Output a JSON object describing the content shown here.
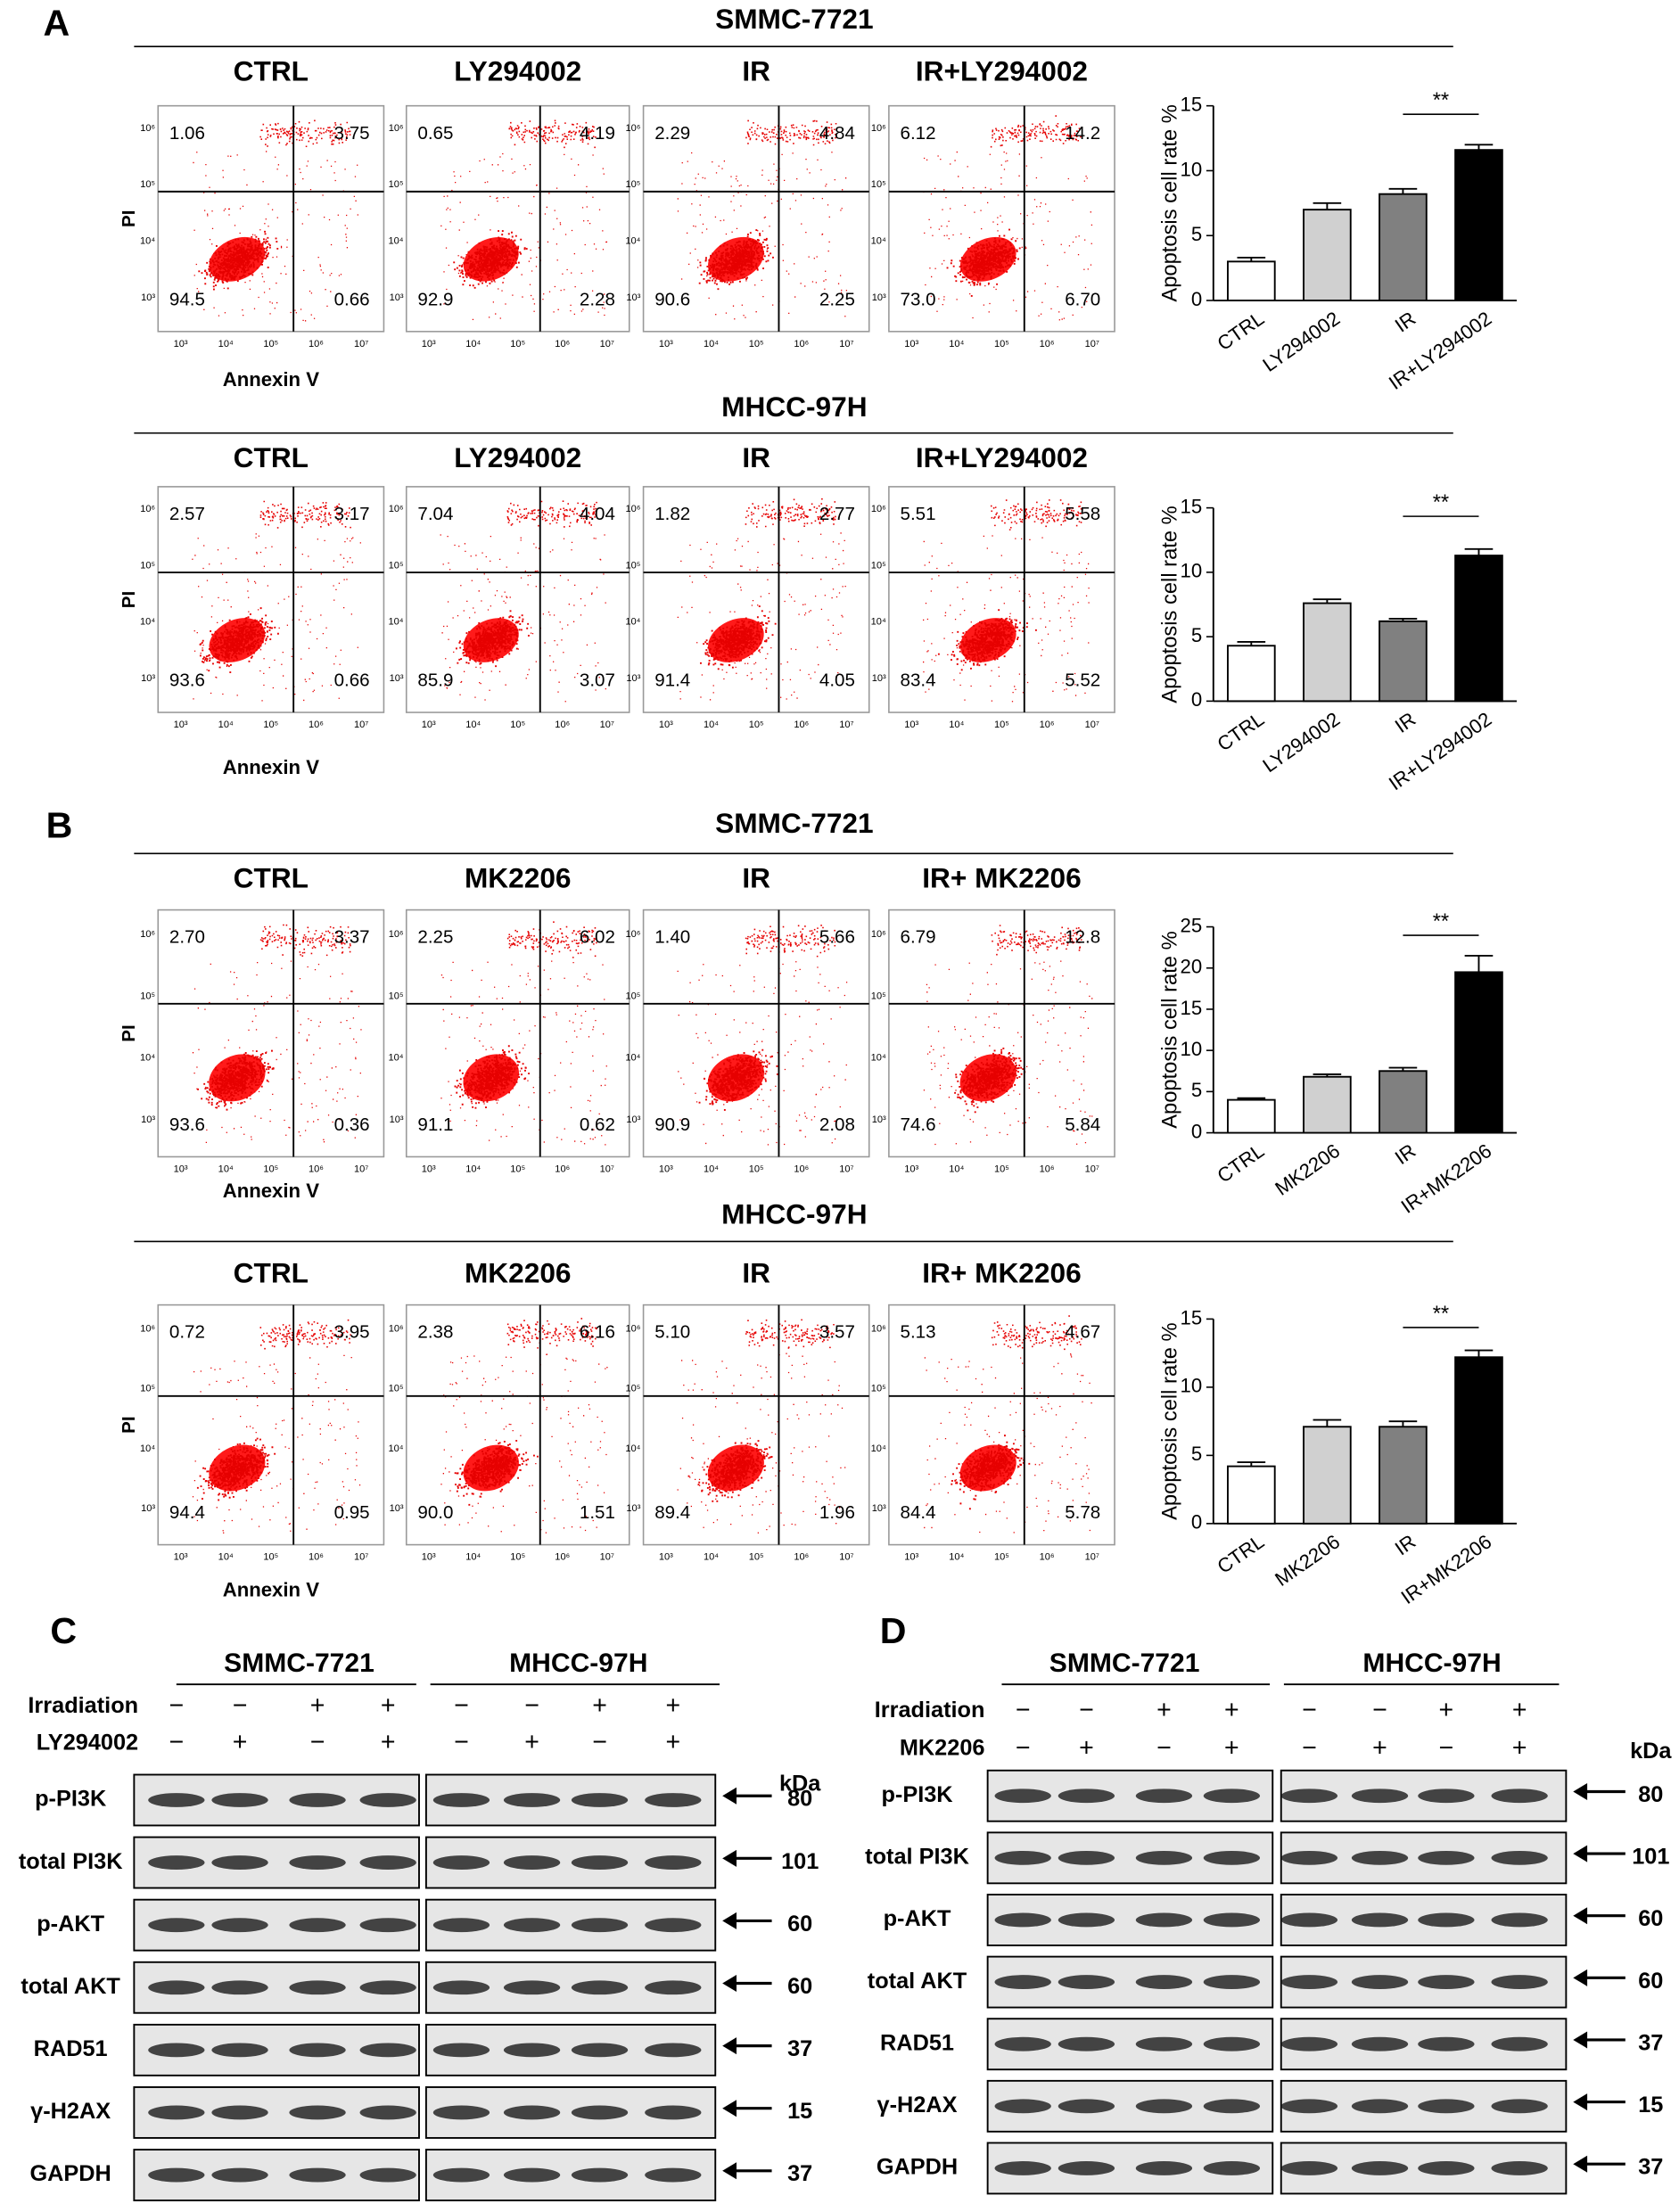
{
  "panels": {
    "a": "A",
    "b": "B",
    "c": "C",
    "d": "D"
  },
  "flow_axis": {
    "y_label": "PI",
    "x_label": "Annexin V",
    "x_ticks": [
      "10³",
      "10⁴",
      "10⁵",
      "10⁶",
      "10⁷"
    ],
    "y_ticks": [
      "10³",
      "10⁴",
      "10⁵",
      "10⁶"
    ]
  },
  "flow": [
    {
      "cell_line": "SMMC-7721",
      "conditions": [
        "CTRL",
        "LY294002",
        "IR",
        "IR+LY294002"
      ],
      "quadrants": [
        [
          "1.06",
          "3.75",
          "94.5",
          "0.66"
        ],
        [
          "0.65",
          "4.19",
          "92.9",
          "2.28"
        ],
        [
          "2.29",
          "4.84",
          "90.6",
          "2.25"
        ],
        [
          "6.12",
          "14.2",
          "73.0",
          "6.70"
        ]
      ]
    },
    {
      "cell_line": "MHCC-97H",
      "conditions": [
        "CTRL",
        "LY294002",
        "IR",
        "IR+LY294002"
      ],
      "quadrants": [
        [
          "2.57",
          "3.17",
          "93.6",
          "0.66"
        ],
        [
          "7.04",
          "4.04",
          "85.9",
          "3.07"
        ],
        [
          "1.82",
          "2.77",
          "91.4",
          "4.05"
        ],
        [
          "5.51",
          "5.58",
          "83.4",
          "5.52"
        ]
      ]
    },
    {
      "cell_line": "SMMC-7721",
      "conditions": [
        "CTRL",
        "MK2206",
        "IR",
        "IR+ MK2206"
      ],
      "quadrants": [
        [
          "2.70",
          "3.37",
          "93.6",
          "0.36"
        ],
        [
          "2.25",
          "6.02",
          "91.1",
          "0.62"
        ],
        [
          "1.40",
          "5.66",
          "90.9",
          "2.08"
        ],
        [
          "6.79",
          "12.8",
          "74.6",
          "5.84"
        ]
      ]
    },
    {
      "cell_line": "MHCC-97H",
      "conditions": [
        "CTRL",
        "MK2206",
        "IR",
        "IR+ MK2206"
      ],
      "quadrants": [
        [
          "0.72",
          "3.95",
          "94.4",
          "0.95"
        ],
        [
          "2.38",
          "6.16",
          "90.0",
          "1.51"
        ],
        [
          "5.10",
          "3.57",
          "89.4",
          "1.96"
        ],
        [
          "5.13",
          "4.67",
          "84.4",
          "5.78"
        ]
      ]
    }
  ],
  "chart_data": [
    {
      "type": "bar",
      "ylabel": "Apoptosis cell rate %",
      "categories": [
        "CTRL",
        "LY294002",
        "IR",
        "IR+LY294002"
      ],
      "values": [
        3.0,
        7.0,
        8.2,
        11.6
      ],
      "errors": [
        0.3,
        0.5,
        0.4,
        0.4
      ],
      "colors": [
        "#ffffff",
        "#d0d0d0",
        "#808080",
        "#000000"
      ],
      "ylim": [
        0,
        15
      ],
      "yticks": [
        0,
        5,
        10,
        15
      ],
      "annotation": "**"
    },
    {
      "type": "bar",
      "ylabel": "Apoptosis cell rate %",
      "categories": [
        "CTRL",
        "LY294002",
        "IR",
        "IR+LY294002"
      ],
      "values": [
        4.3,
        7.6,
        6.2,
        11.3
      ],
      "errors": [
        0.3,
        0.3,
        0.2,
        0.5
      ],
      "colors": [
        "#ffffff",
        "#d0d0d0",
        "#808080",
        "#000000"
      ],
      "ylim": [
        0,
        15
      ],
      "yticks": [
        0,
        5,
        10,
        15
      ],
      "annotation": "**"
    },
    {
      "type": "bar",
      "ylabel": "Apoptosis cell rate %",
      "categories": [
        "CTRL",
        "MK2206",
        "IR",
        "IR+MK2206"
      ],
      "values": [
        4.0,
        6.8,
        7.5,
        19.5
      ],
      "errors": [
        0.2,
        0.3,
        0.4,
        2.0
      ],
      "colors": [
        "#ffffff",
        "#d0d0d0",
        "#808080",
        "#000000"
      ],
      "ylim": [
        0,
        25
      ],
      "yticks": [
        0,
        5,
        10,
        15,
        20,
        25
      ],
      "annotation": "**"
    },
    {
      "type": "bar",
      "ylabel": "Apoptosis cell rate %",
      "categories": [
        "CTRL",
        "MK2206",
        "IR",
        "IR+MK2206"
      ],
      "values": [
        4.2,
        7.1,
        7.1,
        12.2
      ],
      "errors": [
        0.3,
        0.5,
        0.4,
        0.5
      ],
      "colors": [
        "#ffffff",
        "#d0d0d0",
        "#808080",
        "#000000"
      ],
      "ylim": [
        0,
        15
      ],
      "yticks": [
        0,
        5,
        10,
        15
      ],
      "annotation": "**"
    }
  ],
  "blots": [
    {
      "cell_lines": [
        "SMMC-7721",
        "MHCC-97H"
      ],
      "treatments": [
        {
          "name": "Irradiation",
          "signs": [
            "−",
            "−",
            "+",
            "+",
            "−",
            "−",
            "+",
            "+"
          ]
        },
        {
          "name": "LY294002",
          "signs": [
            "−",
            "+",
            "−",
            "+",
            "−",
            "+",
            "−",
            "+"
          ]
        }
      ],
      "unit": "kDa",
      "proteins": [
        "p-PI3K",
        "total PI3K",
        "p-AKT",
        "total AKT",
        "RAD51",
        "γ-H2AX",
        "GAPDH"
      ],
      "kda": [
        80,
        101,
        60,
        60,
        37,
        15,
        37
      ]
    },
    {
      "cell_lines": [
        "SMMC-7721",
        "MHCC-97H"
      ],
      "treatments": [
        {
          "name": "Irradiation",
          "signs": [
            "−",
            "−",
            "+",
            "+",
            "−",
            "−",
            "+",
            "+"
          ]
        },
        {
          "name": "MK2206",
          "signs": [
            "−",
            "+",
            "−",
            "+",
            "−",
            "+",
            "−",
            "+"
          ]
        }
      ],
      "unit": "kDa",
      "proteins": [
        "p-PI3K",
        "total PI3K",
        "p-AKT",
        "total AKT",
        "RAD51",
        "γ-H2AX",
        "GAPDH"
      ],
      "kda": [
        80,
        101,
        60,
        60,
        37,
        15,
        37
      ]
    }
  ]
}
